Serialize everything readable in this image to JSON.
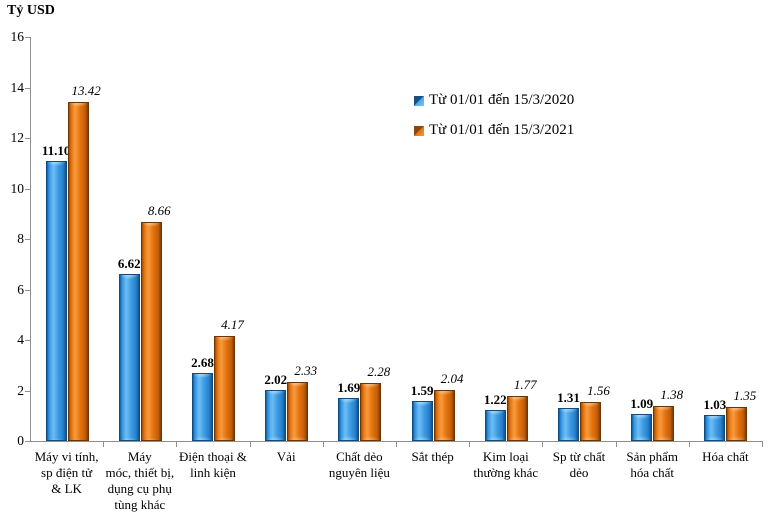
{
  "chart_data": {
    "type": "bar",
    "title": "Tỷ USD",
    "ylabel": "Tỷ USD",
    "xlabel": "",
    "categories": [
      "Máy vi tính,\nsp điện tử\n& LK",
      "Máy\nmóc, thiết bị,\ndụng cụ phụ\ntùng khác",
      "Điện thoại &\nlinh kiện",
      "Vải",
      "Chất dẻo\nnguyên liệu",
      "Sắt thép",
      "Kim loại\nthường khác",
      "Sp từ chất\ndẻo",
      "Sản phẩm\nhóa chất",
      "Hóa chất"
    ],
    "series": [
      {
        "name": "Từ 01/01 đến 15/3/2020",
        "color": "#2E91DC",
        "label_style": "bold",
        "values": [
          11.1,
          6.62,
          2.68,
          2.02,
          1.69,
          1.59,
          1.22,
          1.31,
          1.09,
          1.03
        ]
      },
      {
        "name": "Từ 01/01 đến 15/3/2021",
        "color": "#E4710D",
        "label_style": "italic",
        "values": [
          13.42,
          8.66,
          4.17,
          2.33,
          2.28,
          2.04,
          1.77,
          1.56,
          1.38,
          1.35
        ]
      }
    ],
    "ylim": [
      0,
      16
    ],
    "ytick_step": 2,
    "value_label_decimals": 2,
    "grid": false,
    "legend_position": "inside-top-center",
    "axis_color": "#909090",
    "text_color": "#000000"
  }
}
